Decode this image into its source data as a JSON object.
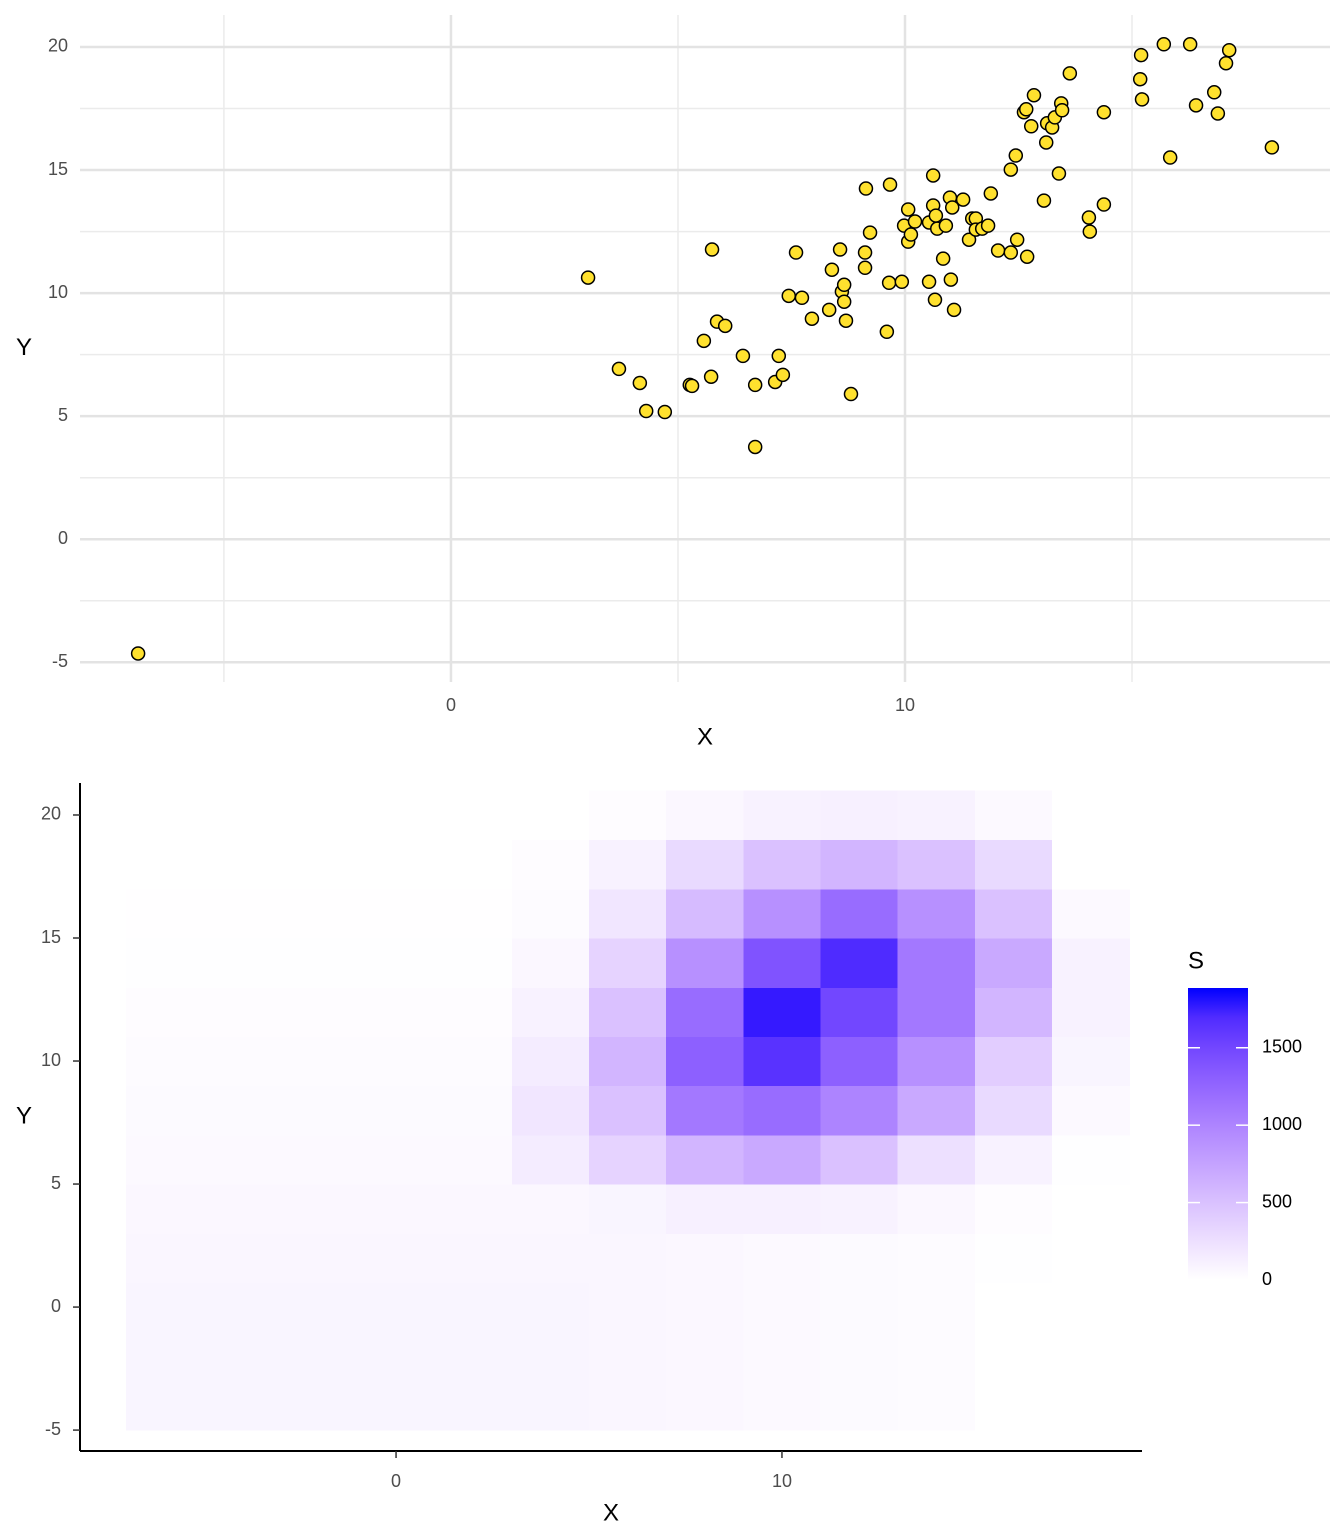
{
  "chart_data": [
    {
      "type": "scatter",
      "x_label": "X",
      "y_label": "Y",
      "x": [
        -6.89,
        3.02,
        3.7,
        4.16,
        4.3,
        4.71,
        5.26,
        5.31,
        5.57,
        5.75,
        5.73,
        5.86,
        6.04,
        6.43,
        6.7,
        6.7,
        7.14,
        7.22,
        7.31,
        7.44,
        7.6,
        7.73,
        7.95,
        8.33,
        8.39,
        8.57,
        8.61,
        8.66,
        8.66,
        8.7,
        8.81,
        9.12,
        9.12,
        9.14,
        9.23,
        9.6,
        9.65,
        9.67,
        9.93,
        9.98,
        10.07,
        10.07,
        10.13,
        10.22,
        10.53,
        10.53,
        10.62,
        10.62,
        10.66,
        10.68,
        10.71,
        10.84,
        10.9,
        10.99,
        11.01,
        11.04,
        11.08,
        11.28,
        11.41,
        11.48,
        11.56,
        11.56,
        11.7,
        11.83,
        11.89,
        12.05,
        12.33,
        12.33,
        12.44,
        12.47,
        12.62,
        12.67,
        12.69,
        12.78,
        12.84,
        13.06,
        13.11,
        13.13,
        13.24,
        13.3,
        13.39,
        13.44,
        13.46,
        13.63,
        14.05,
        14.07,
        14.38,
        14.38,
        15.18,
        15.2,
        15.22,
        15.7,
        15.84,
        16.28,
        16.41,
        16.81,
        16.89,
        17.07,
        17.14,
        18.08
      ],
      "y": [
        -4.64,
        10.63,
        6.92,
        6.35,
        5.21,
        5.17,
        6.27,
        6.23,
        8.06,
        11.77,
        6.6,
        8.84,
        8.67,
        7.45,
        6.27,
        3.75,
        6.39,
        7.45,
        6.68,
        9.89,
        11.65,
        9.81,
        8.96,
        9.32,
        10.95,
        11.77,
        10.06,
        10.34,
        9.65,
        8.88,
        5.9,
        11.65,
        11.03,
        14.25,
        12.46,
        8.43,
        10.42,
        14.41,
        10.46,
        12.74,
        13.4,
        12.09,
        12.38,
        12.91,
        10.46,
        12.87,
        14.78,
        13.56,
        9.73,
        13.15,
        12.62,
        11.4,
        12.74,
        13.88,
        10.55,
        13.48,
        9.32,
        13.8,
        12.17,
        13.03,
        13.03,
        12.58,
        12.62,
        12.74,
        14.05,
        11.73,
        11.65,
        15.02,
        15.59,
        12.17,
        17.35,
        17.47,
        11.48,
        16.78,
        18.04,
        13.76,
        16.12,
        16.9,
        16.73,
        17.14,
        14.86,
        17.71,
        17.43,
        18.93,
        13.07,
        12.5,
        17.35,
        13.6,
        18.69,
        19.67,
        17.87,
        20.11,
        15.51,
        20.11,
        17.63,
        18.16,
        17.3,
        19.34,
        19.87,
        15.92
      ],
      "color": "#ffe12e",
      "edge_color": "#000000",
      "xlim": [
        -8.17,
        19.36
      ],
      "ylim": [
        -5.8,
        21.3
      ],
      "xticks": [
        0,
        10
      ],
      "yticks": [
        -5,
        0,
        5,
        10,
        15,
        20
      ],
      "xminor": [
        -5,
        5,
        15
      ],
      "yminor": [
        -2.5,
        2.5,
        7.5,
        12.5,
        17.5
      ],
      "grid": true,
      "axis_lines": false
    },
    {
      "type": "heatmap",
      "x_label": "X",
      "y_label": "Y",
      "x": [
        -6,
        -4,
        -2,
        0,
        2,
        4,
        6,
        8,
        10,
        12,
        14,
        16,
        18
      ],
      "y": [
        -4,
        -2,
        0,
        2,
        4,
        6,
        8,
        10,
        12,
        14,
        16,
        18,
        20
      ],
      "z": [
        [
          80,
          80,
          80,
          80,
          80,
          80,
          70,
          60,
          50,
          40,
          30,
          0,
          0
        ],
        [
          80,
          80,
          80,
          80,
          80,
          80,
          70,
          60,
          50,
          40,
          30,
          0,
          0
        ],
        [
          80,
          80,
          80,
          80,
          80,
          80,
          70,
          60,
          50,
          40,
          30,
          0,
          0
        ],
        [
          70,
          70,
          70,
          70,
          70,
          70,
          70,
          60,
          50,
          40,
          30,
          10,
          0
        ],
        [
          60,
          60,
          60,
          60,
          60,
          60,
          80,
          120,
          120,
          100,
          60,
          20,
          0
        ],
        [
          50,
          50,
          50,
          50,
          50,
          150,
          350,
          600,
          700,
          500,
          250,
          100,
          10
        ],
        [
          40,
          40,
          40,
          40,
          40,
          200,
          500,
          1100,
          1200,
          1000,
          700,
          300,
          50
        ],
        [
          30,
          30,
          30,
          30,
          30,
          150,
          600,
          1300,
          1650,
          1300,
          900,
          400,
          80
        ],
        [
          20,
          20,
          20,
          20,
          20,
          100,
          500,
          1200,
          1800,
          1500,
          1100,
          600,
          100
        ],
        [
          10,
          10,
          10,
          10,
          10,
          60,
          350,
          900,
          1400,
          1700,
          1100,
          700,
          100
        ],
        [
          5,
          5,
          5,
          5,
          5,
          30,
          200,
          550,
          900,
          1200,
          900,
          500,
          50
        ],
        [
          0,
          0,
          0,
          0,
          0,
          20,
          100,
          300,
          500,
          600,
          500,
          300,
          0
        ],
        [
          0,
          0,
          0,
          0,
          0,
          0,
          20,
          60,
          100,
          120,
          100,
          50,
          0
        ]
      ],
      "fill_scale": {
        "title": "S",
        "low": "#ffffff",
        "high": "#0000ff",
        "limits": [
          0,
          1886
        ],
        "ticks": [
          0,
          500,
          1000,
          1500
        ]
      },
      "xlim": [
        -8.19,
        19.33
      ],
      "ylim": [
        -5.85,
        21.3
      ],
      "xticks": [
        0,
        10
      ],
      "yticks": [
        -5,
        0,
        5,
        10,
        15,
        20
      ],
      "grid": false,
      "axis_lines": true
    }
  ]
}
